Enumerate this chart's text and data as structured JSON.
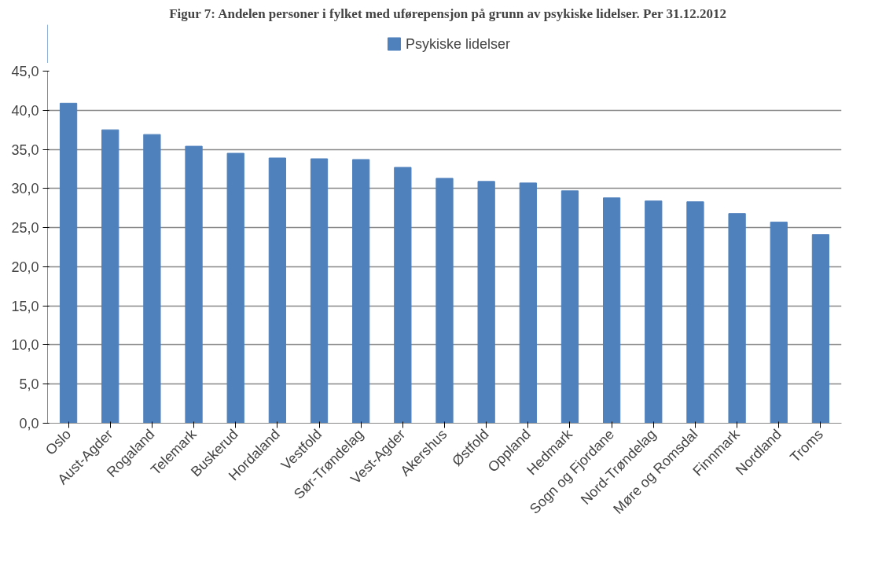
{
  "chart_data": {
    "type": "bar",
    "title": "Figur 7: Andelen personer i fylket med uførepensjon på grunn av psykiske lidelser. Per 31.12.2012",
    "categories": [
      "Oslo",
      "Aust-Agder",
      "Rogaland",
      "Telemark",
      "Buskerud",
      "Hordaland",
      "Vestfold",
      "Sør-Trøndelag",
      "Vest-Agder",
      "Akershus",
      "Østfold",
      "Oppland",
      "Hedmark",
      "Sogn og Fjordane",
      "Nord-Trøndelag",
      "Møre og Romsdal",
      "Finnmark",
      "Nordland",
      "Troms"
    ],
    "series": [
      {
        "name": "Psykiske lidelser",
        "color": "#4f81bd",
        "values": [
          40.9,
          37.5,
          36.9,
          35.4,
          34.5,
          33.9,
          33.8,
          33.7,
          32.7,
          31.3,
          30.9,
          30.7,
          29.7,
          28.8,
          28.4,
          28.3,
          26.8,
          25.7,
          24.1
        ]
      }
    ],
    "ylim": [
      0,
      45
    ],
    "yticks": [
      {
        "value": 0,
        "label": "0,0"
      },
      {
        "value": 5,
        "label": "5,0"
      },
      {
        "value": 10,
        "label": "10,0"
      },
      {
        "value": 15,
        "label": "15,0"
      },
      {
        "value": 20,
        "label": "20,0"
      },
      {
        "value": 25,
        "label": "25,0"
      },
      {
        "value": 30,
        "label": "30,0"
      },
      {
        "value": 35,
        "label": "35,0"
      },
      {
        "value": 40,
        "label": "40,0"
      },
      {
        "value": 45,
        "label": "45,0"
      }
    ],
    "grid": "y",
    "legend": "top"
  }
}
